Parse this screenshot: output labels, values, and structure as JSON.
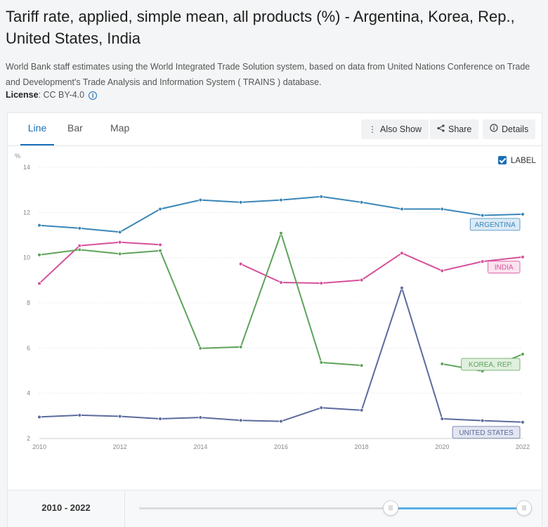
{
  "header": {
    "title": "Tariff rate, applied, simple mean, all products (%) - Argentina, Korea, Rep., United States, India",
    "description": "World Bank staff estimates using the World Integrated Trade Solution system, based on data from United Nations Conference on Trade and Development's Trade Analysis and Information System ( TRAINS ) database.",
    "license_label": "License",
    "license_value": ": CC BY-4.0"
  },
  "tabs": [
    "Line",
    "Bar",
    "Map"
  ],
  "toolbar": {
    "also_show": "Also Show",
    "share": "Share",
    "details": "Details"
  },
  "label_toggle": "LABEL",
  "colors": {
    "accent": "#1a6fb7"
  },
  "footer": {
    "range": "2010 - 2022"
  },
  "chart_data": {
    "type": "line",
    "ylabel": "%",
    "ylim": [
      2,
      14
    ],
    "yticks": [
      2,
      4,
      6,
      8,
      10,
      12,
      14
    ],
    "xticks": [
      2010,
      2012,
      2014,
      2016,
      2018,
      2020,
      2022
    ],
    "x": [
      2010,
      2011,
      2012,
      2013,
      2014,
      2015,
      2016,
      2017,
      2018,
      2019,
      2020,
      2021,
      2022
    ],
    "grid": true,
    "series": [
      {
        "name": "ARGENTINA",
        "color": "#3a86b8",
        "labelFill": "#dbeaf6",
        "values": [
          11.43,
          11.3,
          11.13,
          12.15,
          12.55,
          12.45,
          12.55,
          12.7,
          12.45,
          12.15,
          12.15,
          11.87,
          11.92
        ]
      },
      {
        "name": "INDIA",
        "color": "#d6509a",
        "labelFill": "#fbe3ef",
        "values": [
          8.86,
          10.53,
          10.68,
          10.57,
          null,
          9.72,
          8.9,
          8.87,
          9.01,
          10.2,
          9.42,
          9.83,
          10.03
        ]
      },
      {
        "name": "KOREA, REP.",
        "color": "#5ea35a",
        "labelFill": "#e0f0de",
        "values": [
          10.12,
          10.35,
          10.17,
          10.31,
          5.99,
          6.05,
          11.08,
          5.36,
          5.23,
          null,
          5.3,
          4.98,
          5.73
        ]
      },
      {
        "name": "UNITED STATES",
        "color": "#5b6b9c",
        "labelFill": "#e3e6f1",
        "values": [
          2.95,
          3.03,
          2.98,
          2.87,
          2.93,
          2.8,
          2.76,
          3.36,
          3.25,
          8.66,
          2.87,
          2.79,
          2.72
        ]
      }
    ]
  }
}
